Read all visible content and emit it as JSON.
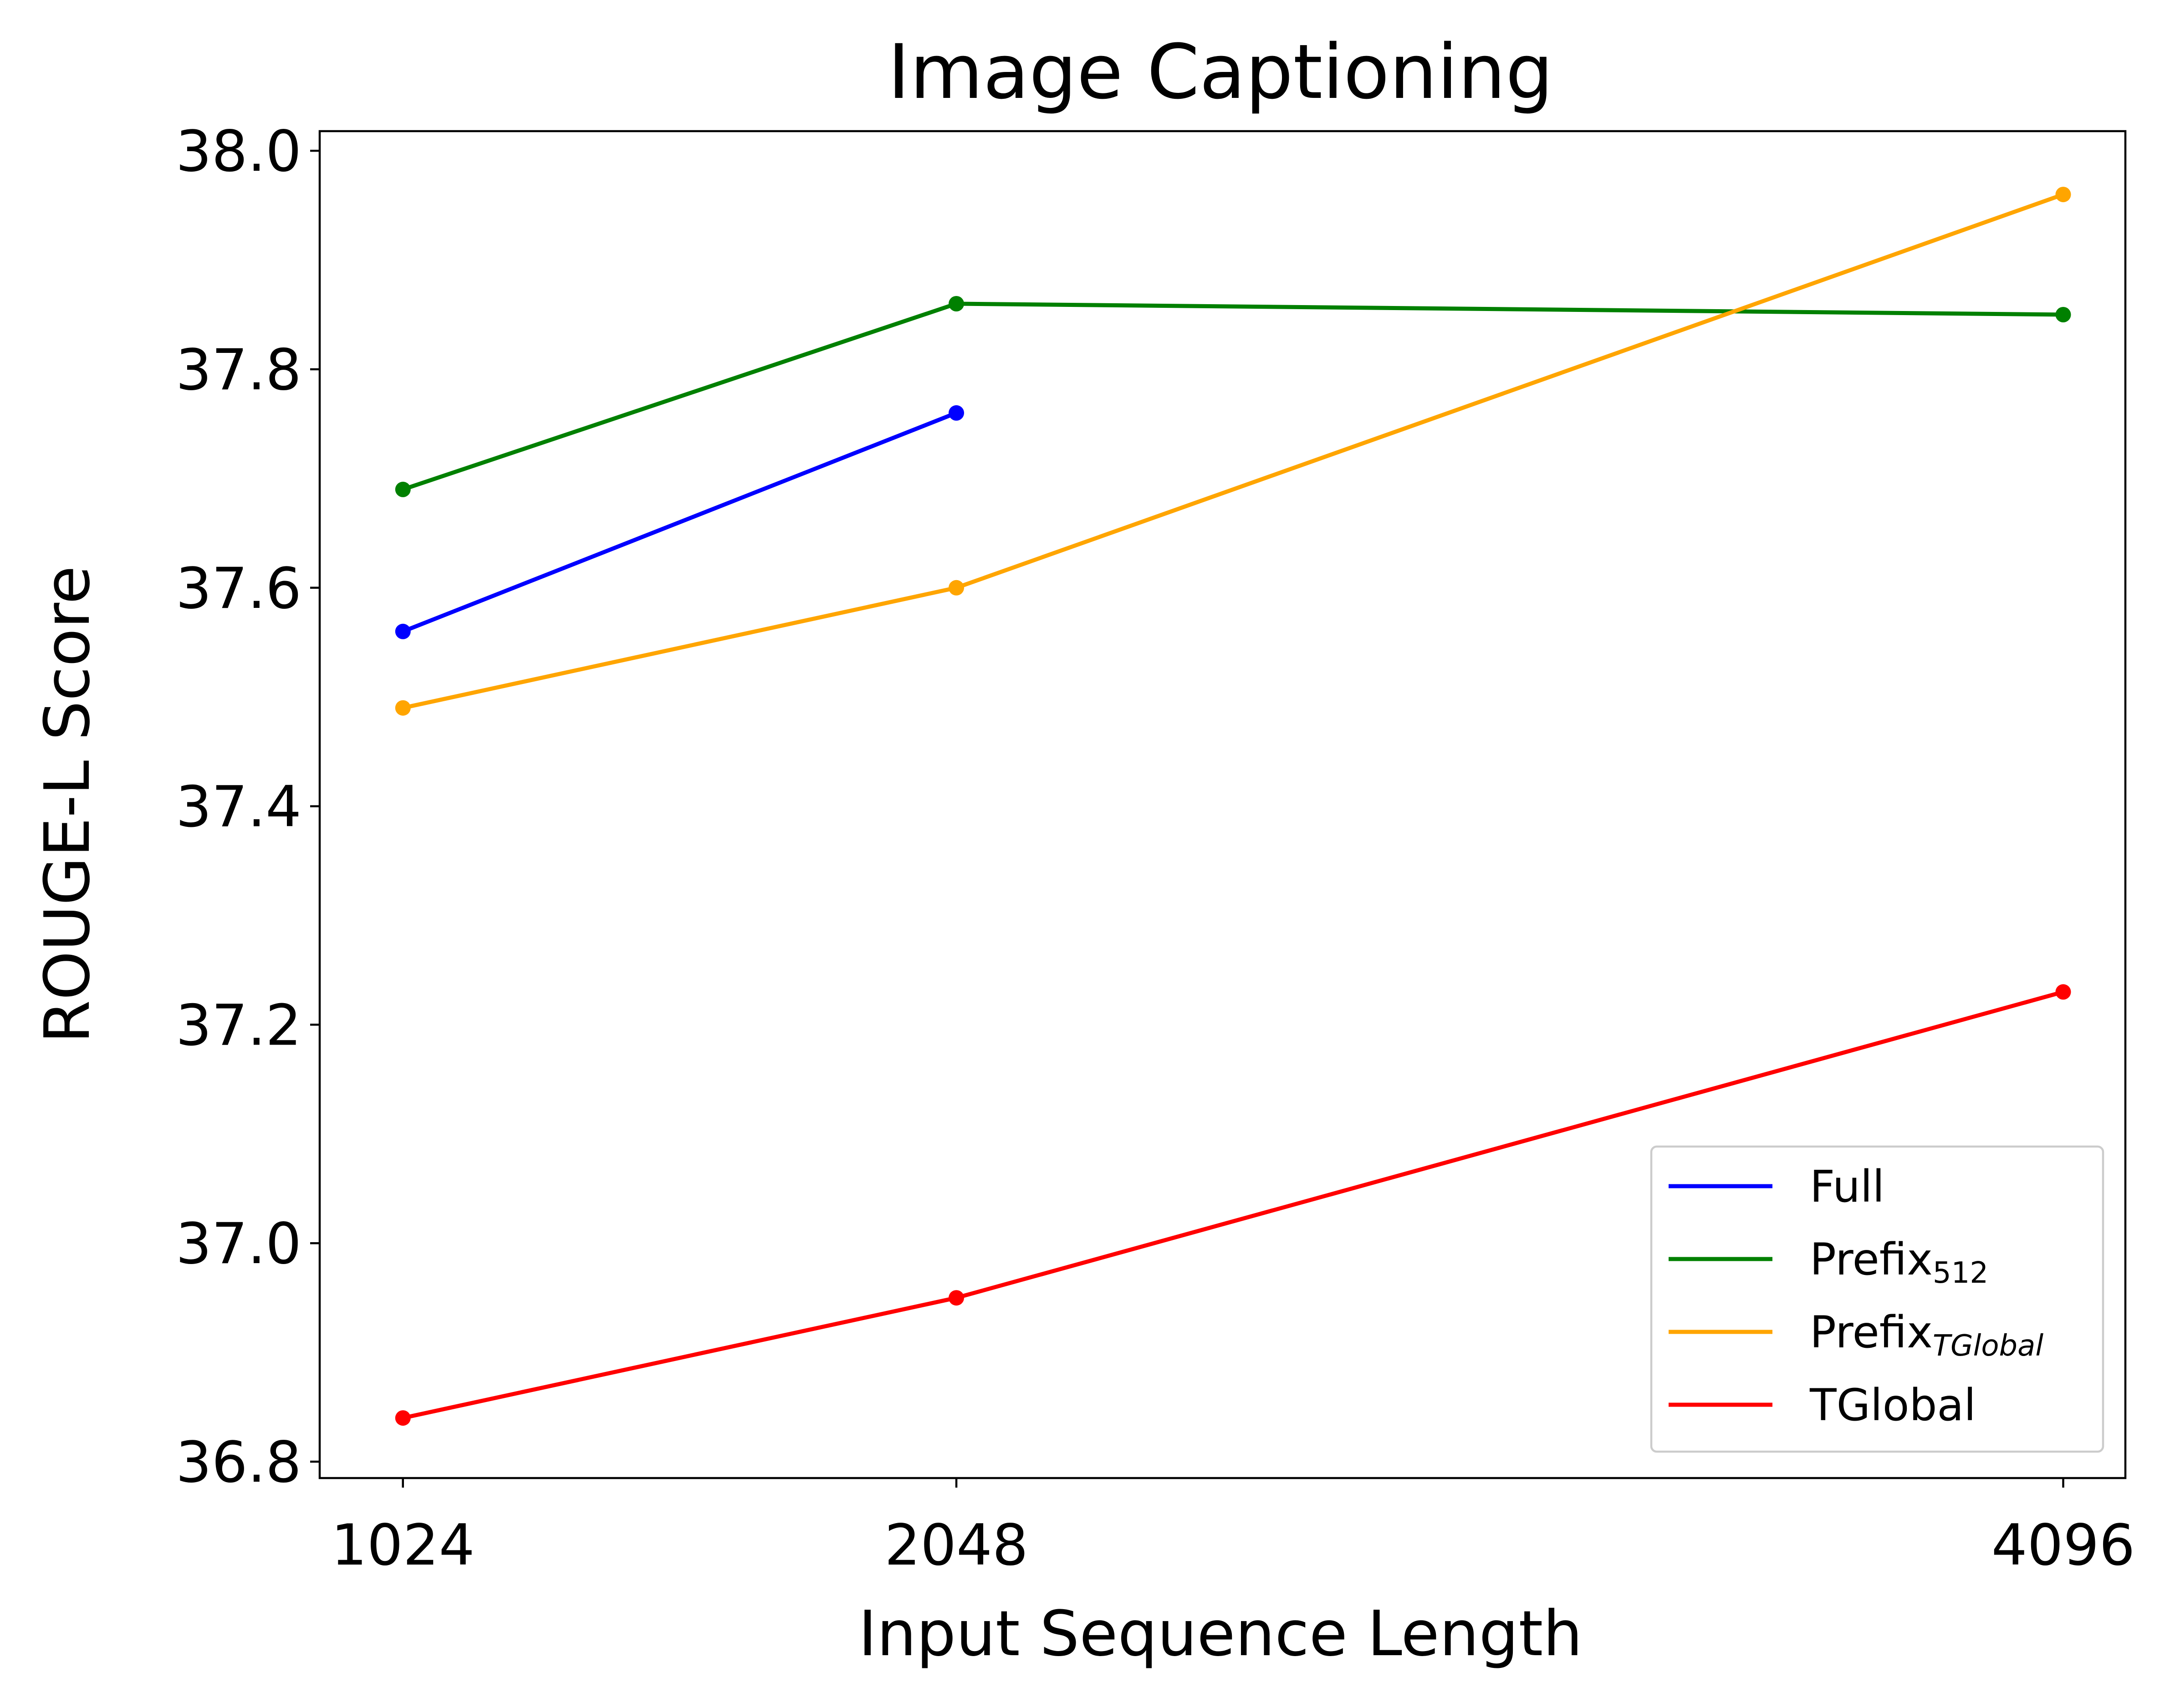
{
  "chart_data": {
    "type": "line",
    "title": "Image Captioning",
    "xlabel": "Input Sequence Length",
    "ylabel": "ROUGE-L Score",
    "x": [
      1024,
      2048,
      4096
    ],
    "x_tick_labels": [
      "1024",
      "2048",
      "4096"
    ],
    "xlim": [
      870,
      4211
    ],
    "ylim": [
      36.785,
      38.018
    ],
    "y_ticks": [
      36.8,
      37.0,
      37.2,
      37.4,
      37.6,
      37.8,
      38.0
    ],
    "y_tick_labels": [
      "36.8",
      "37.0",
      "37.2",
      "37.4",
      "37.6",
      "37.8",
      "38.0"
    ],
    "grid": false,
    "legend_position": "lower-right",
    "series": [
      {
        "name": "Full",
        "legend_base": "Full",
        "legend_sub": "",
        "legend_sub_italic": false,
        "color": "#0000ff",
        "x": [
          1024,
          2048
        ],
        "values": [
          37.56,
          37.76
        ]
      },
      {
        "name": "Prefix512",
        "legend_base": "Prefix",
        "legend_sub": "512",
        "legend_sub_italic": false,
        "color": "#008000",
        "x": [
          1024,
          2048,
          4096
        ],
        "values": [
          37.69,
          37.86,
          37.85
        ]
      },
      {
        "name": "PrefixTGlobal",
        "legend_base": "Prefix",
        "legend_sub": "TGlobal",
        "legend_sub_italic": true,
        "color": "#ffa500",
        "x": [
          1024,
          2048,
          4096
        ],
        "values": [
          37.49,
          37.6,
          37.96
        ]
      },
      {
        "name": "TGlobal",
        "legend_base": "TGlobal",
        "legend_sub": "",
        "legend_sub_italic": false,
        "color": "#ff0000",
        "x": [
          1024,
          2048,
          4096
        ],
        "values": [
          36.84,
          36.95,
          37.23
        ]
      }
    ]
  }
}
